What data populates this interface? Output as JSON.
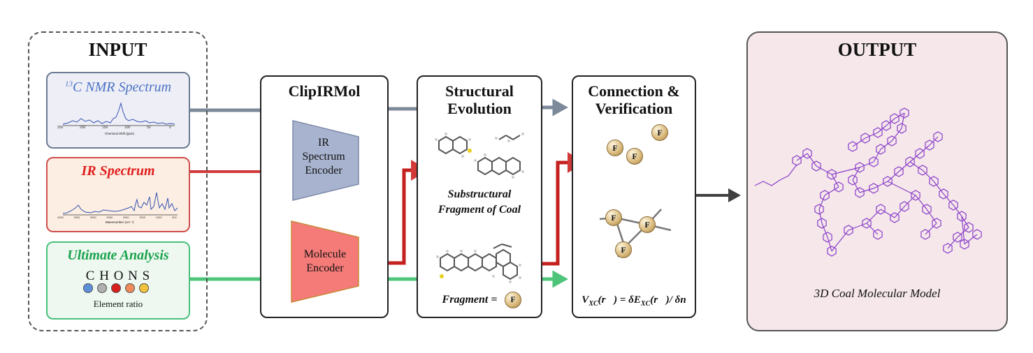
{
  "input": {
    "title": "INPUT",
    "nmr": {
      "sup": "13",
      "label": "C NMR Spectrum",
      "axis_ticks": [
        "250",
        "200",
        "150",
        "100",
        "50",
        "0"
      ],
      "axis_label": "Chemical Shift (ppm)"
    },
    "ir": {
      "label": "IR Spectrum",
      "axis_ticks": [
        "4000",
        "3500",
        "3000",
        "2500",
        "2000",
        "1500",
        "1000",
        "500"
      ],
      "axis_label": "Wavenumber (cm⁻¹)"
    },
    "ultimate": {
      "label": "Ultimate Analysis",
      "elements": "C H O N S",
      "element_colors": [
        "#5b8fd9",
        "#b0b0b0",
        "#d91e1e",
        "#ef8a5a",
        "#f2c23a"
      ],
      "caption": "Element ratio"
    }
  },
  "clipirmol": {
    "title": "ClipIRMol",
    "ir_encoder": [
      "IR",
      "Spectrum",
      "Encoder"
    ],
    "mol_encoder": [
      "Molecule",
      "Encoder"
    ]
  },
  "evolution": {
    "title": [
      "Structural",
      "Evolution"
    ],
    "substructure": [
      "Substructural",
      "Fragment of Coal"
    ],
    "fragment": "Fragment =",
    "fragment_symbol": "F"
  },
  "connection": {
    "title": [
      "Connection &",
      "Verification"
    ],
    "node_symbol": "F",
    "equation": {
      "v": "V",
      "xc": "XC",
      "r": "(r⃗)",
      "eq": " = δE",
      "xc2": "XC",
      "tail": "(r⃗)/ δn"
    }
  },
  "output": {
    "title": "OUTPUT",
    "caption": "3D Coal Molecular Model"
  },
  "colors": {
    "red_arrow": "#d23a3a",
    "gray_arrow": "#7d8a99",
    "green_arrow": "#4ec57a",
    "dark_arrow": "#404040",
    "nmr_border": "#6b7b93",
    "nmr_fill": "#eeeef6",
    "ir_border": "#cf4c4c",
    "ir_fill": "#fceee2",
    "ua_border": "#48c07a",
    "ua_fill": "#eef8f1",
    "encoder_fill": "#a8b4cf",
    "mol_encoder_fill": "#f47b78",
    "output_fill": "#f5e7ea",
    "molecule": "#8a3fc9"
  }
}
